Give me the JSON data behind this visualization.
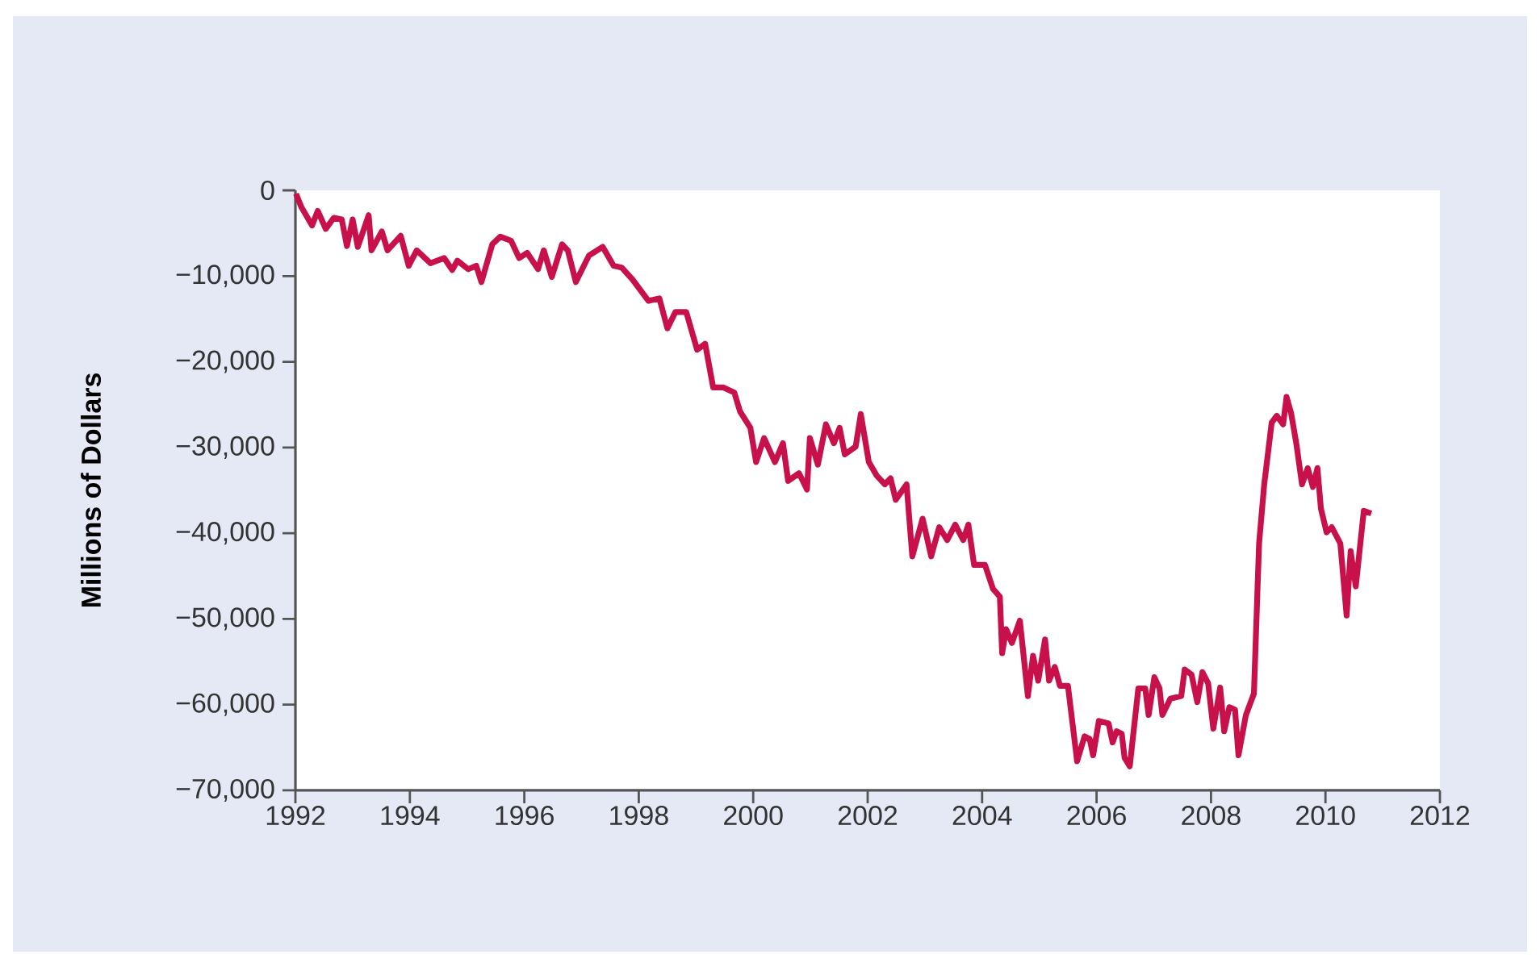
{
  "chart_data": {
    "type": "line",
    "ylabel": "Millions of Dollars",
    "color": "#c8104a",
    "line_style": "solid",
    "xlim": [
      1992,
      2012
    ],
    "ylim": [
      -70000,
      0
    ],
    "xticks": [
      1992,
      1994,
      1996,
      1998,
      2000,
      2002,
      2004,
      2006,
      2008,
      2010,
      2012
    ],
    "yticks": [
      0,
      {
        "value": -10000,
        "label": "−10,000"
      },
      {
        "value": -20000,
        "label": "−20,000"
      },
      {
        "value": -30000,
        "label": "−30,000"
      },
      {
        "value": -40000,
        "label": "−40,000"
      },
      {
        "value": -50000,
        "label": "−50,000"
      },
      {
        "value": -60000,
        "label": "−60,000"
      },
      {
        "value": -70000,
        "label": "−70,000"
      }
    ],
    "x": [
      1992.01,
      1992.1,
      1992.29,
      1992.39,
      1992.53,
      1992.67,
      1992.81,
      1992.9,
      1993.0,
      1993.09,
      1993.28,
      1993.33,
      1993.51,
      1993.61,
      1993.84,
      1993.98,
      1994.12,
      1994.36,
      1994.6,
      1994.74,
      1994.83,
      1995.02,
      1995.16,
      1995.25,
      1995.44,
      1995.58,
      1995.77,
      1995.91,
      1996.05,
      1996.24,
      1996.34,
      1996.48,
      1996.66,
      1996.76,
      1996.9,
      1997.13,
      1997.37,
      1997.56,
      1997.7,
      1997.89,
      1998.17,
      1998.36,
      1998.5,
      1998.64,
      1998.83,
      1999.02,
      1999.16,
      1999.3,
      1999.48,
      1999.67,
      1999.77,
      1999.95,
      2000.05,
      2000.19,
      2000.38,
      2000.52,
      2000.61,
      2000.8,
      2000.94,
      2000.99,
      2001.13,
      2001.27,
      2001.41,
      2001.51,
      2001.6,
      2001.79,
      2001.88,
      2002.02,
      2002.16,
      2002.3,
      2002.4,
      2002.49,
      2002.68,
      2002.78,
      2002.96,
      2003.11,
      2003.25,
      2003.39,
      2003.53,
      2003.67,
      2003.76,
      2003.86,
      2004.05,
      2004.19,
      2004.31,
      2004.35,
      2004.42,
      2004.52,
      2004.66,
      2004.8,
      2004.89,
      2004.98,
      2005.1,
      2005.17,
      2005.27,
      2005.36,
      2005.5,
      2005.66,
      2005.79,
      2005.88,
      2005.94,
      2006.04,
      2006.21,
      2006.28,
      2006.35,
      2006.44,
      2006.49,
      2006.58,
      2006.73,
      2006.85,
      2006.91,
      2007.01,
      2007.1,
      2007.15,
      2007.29,
      2007.48,
      2007.54,
      2007.66,
      2007.76,
      2007.85,
      2007.95,
      2008.04,
      2008.16,
      2008.23,
      2008.32,
      2008.42,
      2008.48,
      2008.61,
      2008.75,
      2008.84,
      2008.93,
      2009.06,
      2009.15,
      2009.26,
      2009.32,
      2009.4,
      2009.49,
      2009.59,
      2009.69,
      2009.78,
      2009.86,
      2009.92,
      2010.02,
      2010.11,
      2010.26,
      2010.37,
      2010.44,
      2010.53,
      2010.67,
      2010.8
    ],
    "values": [
      -400,
      -1900,
      -4100,
      -2400,
      -4500,
      -3200,
      -3400,
      -6500,
      -3400,
      -6600,
      -2900,
      -7000,
      -4800,
      -7000,
      -5300,
      -8800,
      -7000,
      -8500,
      -7900,
      -9300,
      -8200,
      -9200,
      -8800,
      -10700,
      -6300,
      -5400,
      -5900,
      -7900,
      -7300,
      -9200,
      -7000,
      -10100,
      -6300,
      -7000,
      -10700,
      -7600,
      -6600,
      -8800,
      -9000,
      -10400,
      -12900,
      -12600,
      -16100,
      -14200,
      -14200,
      -18600,
      -17900,
      -23000,
      -23000,
      -23600,
      -25800,
      -27700,
      -31700,
      -28900,
      -31700,
      -29500,
      -33900,
      -33000,
      -34900,
      -28900,
      -32000,
      -27300,
      -29500,
      -27700,
      -30800,
      -29900,
      -26100,
      -31700,
      -33300,
      -34300,
      -33600,
      -36100,
      -34300,
      -42700,
      -38300,
      -42700,
      -39300,
      -40800,
      -39000,
      -40800,
      -39000,
      -43700,
      -43700,
      -46500,
      -47400,
      -54000,
      -51200,
      -52800,
      -50200,
      -59000,
      -54300,
      -57200,
      -52400,
      -57200,
      -55600,
      -57800,
      -57800,
      -66600,
      -63700,
      -64000,
      -65900,
      -61900,
      -62200,
      -64400,
      -63100,
      -63400,
      -66200,
      -67200,
      -58100,
      -58100,
      -61200,
      -56800,
      -58100,
      -61200,
      -59300,
      -59000,
      -55900,
      -56500,
      -59700,
      -56200,
      -57500,
      -62800,
      -58000,
      -63100,
      -60300,
      -60600,
      -65900,
      -61200,
      -58700,
      -41200,
      -34300,
      -27100,
      -26300,
      -27300,
      -24100,
      -26000,
      -29500,
      -34300,
      -32400,
      -34600,
      -32400,
      -37100,
      -39900,
      -39300,
      -41200,
      -49600,
      -42100,
      -46200,
      -37400,
      -37700
    ]
  }
}
